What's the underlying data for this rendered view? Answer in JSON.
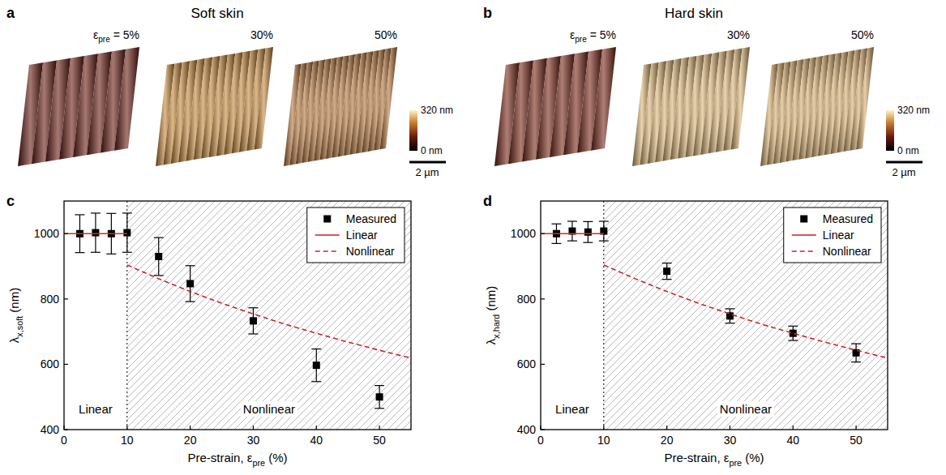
{
  "afm_panels": [
    {
      "letter": "a",
      "title": "Soft skin",
      "samples": [
        {
          "label": {
            "text": "ε",
            "sub": "pre",
            "tail": " = 5%"
          },
          "ridge_count": 8,
          "color": "#6b1e14"
        },
        {
          "label": {
            "text": "30%"
          },
          "ridge_count": 14,
          "color": "#c98a3c"
        },
        {
          "label": {
            "text": "50%"
          },
          "ridge_count": 17,
          "color": "#b8763a"
        }
      ],
      "colorbar": {
        "range": [
          0,
          320
        ],
        "ticks": [
          {
            "value": 0,
            "label": "0 nm"
          },
          {
            "value": 320,
            "label": "320 nm"
          }
        ]
      },
      "scale_bar": "2 µm"
    },
    {
      "letter": "b",
      "title": "Hard skin",
      "samples": [
        {
          "label": {
            "text": "ε",
            "sub": "pre",
            "tail": " = 5%"
          },
          "ridge_count": 8,
          "color": "#7a2818"
        },
        {
          "label": {
            "text": "30%"
          },
          "ridge_count": 14,
          "color": "#e0b878"
        },
        {
          "label": {
            "text": "50%"
          },
          "ridge_count": 16,
          "color": "#dcb070"
        }
      ],
      "colorbar": {
        "range": [
          0,
          320
        ],
        "ticks": [
          {
            "value": 0,
            "label": "0 nm"
          },
          {
            "value": 320,
            "label": "320 nm"
          }
        ]
      },
      "scale_bar": "2 µm"
    }
  ],
  "chart_data": [
    {
      "letter": "c",
      "type": "scatter",
      "x_label": {
        "text": "Pre-strain, ε",
        "sub": "pre",
        "tail": " (%)"
      },
      "y_label": {
        "text": "λ",
        "sub": "x,soft",
        "tail": " (nm)"
      },
      "xlim": [
        0,
        55
      ],
      "ylim": [
        400,
        1100
      ],
      "xticks": [
        0,
        10,
        20,
        30,
        40,
        50
      ],
      "yticks": [
        400,
        600,
        800,
        1000
      ],
      "legend": "upper right",
      "regions": {
        "boundary": 10,
        "labels": [
          "Linear",
          "Nonlinear"
        ]
      },
      "series": [
        {
          "name": "Measured",
          "type": "scatter",
          "marker": "square",
          "color": "#000000",
          "x": [
            2.5,
            5,
            7.5,
            10,
            15,
            20,
            30,
            40,
            50
          ],
          "values": [
            1000,
            1003,
            1000,
            1003,
            930,
            847,
            733,
            597,
            500
          ],
          "errors": [
            58,
            60,
            62,
            60,
            58,
            55,
            40,
            50,
            35
          ]
        },
        {
          "name": "Linear",
          "type": "line",
          "line_style": "solid",
          "color": "#d42a2a",
          "x": [
            0,
            10
          ],
          "values": [
            1000,
            1000
          ]
        },
        {
          "name": "Nonlinear",
          "type": "line",
          "line_style": "dashed",
          "color": "#c0282d",
          "x": [
            10,
            15,
            20,
            25,
            30,
            35,
            40,
            45,
            50,
            55
          ],
          "values": [
            904,
            862,
            823,
            787,
            754,
            723,
            695,
            668,
            643,
            619
          ]
        }
      ]
    },
    {
      "letter": "d",
      "type": "scatter",
      "x_label": {
        "text": "Pre-strain, ε",
        "sub": "pre",
        "tail": " (%)"
      },
      "y_label": {
        "text": "λ",
        "sub": "x,hard",
        "tail": " (nm)"
      },
      "xlim": [
        0,
        55
      ],
      "ylim": [
        400,
        1100
      ],
      "xticks": [
        0,
        10,
        20,
        30,
        40,
        50
      ],
      "yticks": [
        400,
        600,
        800,
        1000
      ],
      "legend": "upper right",
      "regions": {
        "boundary": 10,
        "labels": [
          "Linear",
          "Nonlinear"
        ]
      },
      "series": [
        {
          "name": "Measured",
          "type": "scatter",
          "marker": "square",
          "color": "#000000",
          "x": [
            2.5,
            5,
            7.5,
            10,
            20,
            30,
            40,
            50
          ],
          "values": [
            1000,
            1008,
            1005,
            1008,
            885,
            748,
            695,
            635
          ],
          "errors": [
            30,
            30,
            32,
            30,
            25,
            22,
            22,
            28
          ]
        },
        {
          "name": "Linear",
          "type": "line",
          "line_style": "solid",
          "color": "#d42a2a",
          "x": [
            0,
            10
          ],
          "values": [
            1000,
            1000
          ]
        },
        {
          "name": "Nonlinear",
          "type": "line",
          "line_style": "dashed",
          "color": "#c0282d",
          "x": [
            10,
            15,
            20,
            25,
            30,
            35,
            40,
            45,
            50,
            55
          ],
          "values": [
            904,
            862,
            823,
            787,
            754,
            723,
            695,
            668,
            643,
            619
          ]
        }
      ]
    }
  ]
}
